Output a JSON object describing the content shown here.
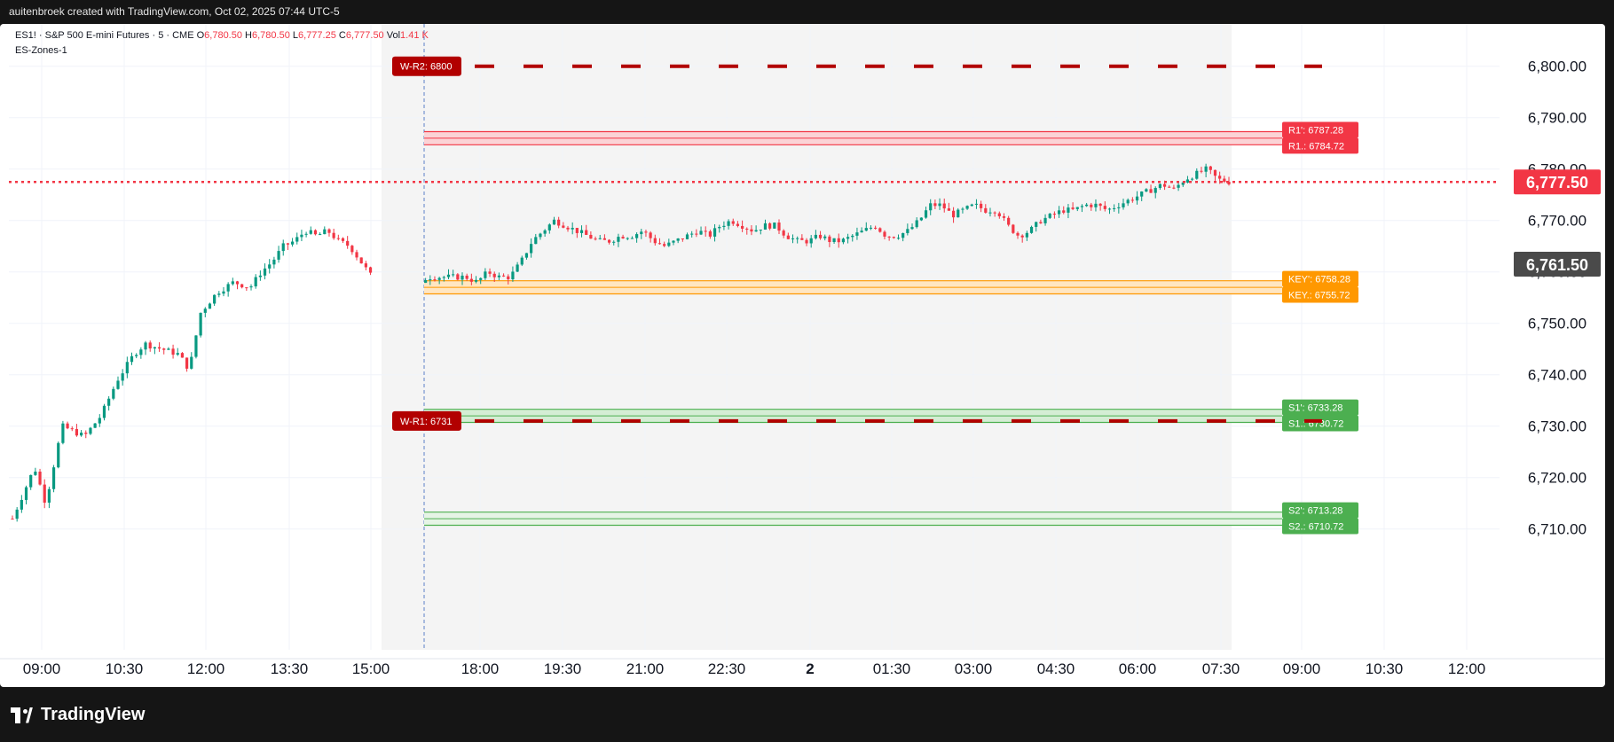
{
  "header": {
    "text": "auitenbroek created with TradingView.com, Oct 02, 2025 07:44 UTC-5"
  },
  "legend": {
    "symbol": "ES1! · S&P 500 E-mini Futures · 5 · CME",
    "o_label": "O",
    "o": "6,780.50",
    "h_label": "H",
    "h": "6,780.50",
    "l_label": "L",
    "l": "6,777.25",
    "c_label": "C",
    "c": "6,777.50",
    "vol_label": "Vol",
    "vol": "1.41 K",
    "indicator": "ES-Zones-1"
  },
  "brand": {
    "name": "TradingView"
  },
  "chart_data": {
    "type": "candlestick",
    "symbol": "ES1!",
    "timeframe": "5",
    "exchange": "CME",
    "y_ticks": [
      "6,800.00",
      "6,790.00",
      "6,780.00",
      "6,770.00",
      "6,760.00",
      "6,750.00",
      "6,740.00",
      "6,730.00",
      "6,720.00",
      "6,710.00"
    ],
    "y_tick_values": [
      6800,
      6790,
      6780,
      6770,
      6760,
      6750,
      6740,
      6730,
      6720,
      6710
    ],
    "ylim": [
      6706.5,
      6806.5
    ],
    "x_ticks": [
      "09:00",
      "10:30",
      "12:00",
      "13:30",
      "15:00",
      "18:00",
      "19:30",
      "21:00",
      "22:30",
      "2",
      "01:30",
      "03:00",
      "04:30",
      "06:00",
      "07:30",
      "09:00",
      "10:30",
      "12:00"
    ],
    "last_price": {
      "label": "6,777.50",
      "value": 6777.5
    },
    "crosshair_price": {
      "label": "6,761.50",
      "value": 6761.5
    },
    "zones": [
      {
        "name": "R1",
        "upper_label": "R1': 6787.28",
        "lower_label": "R1.: 6784.72",
        "upper": 6787.28,
        "lower": 6784.72,
        "color": "#f23645",
        "fill": "#fbd3d6"
      },
      {
        "name": "KEY",
        "upper_label": "KEY': 6758.28",
        "lower_label": "KEY.: 6755.72",
        "upper": 6758.28,
        "lower": 6755.72,
        "color": "#ff9800",
        "fill": "#ffe6c2"
      },
      {
        "name": "S1",
        "upper_label": "S1': 6733.28",
        "lower_label": "S1.: 6730.72",
        "upper": 6733.28,
        "lower": 6730.72,
        "color": "#4caf50",
        "fill": "#d4edd4"
      },
      {
        "name": "S2",
        "upper_label": "S2': 6713.28",
        "lower_label": "S2.: 6710.72",
        "upper": 6713.28,
        "lower": 6710.72,
        "color": "#4caf50",
        "fill": "#e6f4e6"
      }
    ],
    "weekly_levels": [
      {
        "label": "W-R2: 6800",
        "value": 6800,
        "color": "#b20000"
      },
      {
        "label": "W-R1: 6731",
        "value": 6731,
        "color": "#b20000"
      }
    ],
    "path": [
      [
        0,
        6712
      ],
      [
        4,
        6722
      ],
      [
        6,
        6715
      ],
      [
        9,
        6730
      ],
      [
        13,
        6728
      ],
      [
        16,
        6732
      ],
      [
        19,
        6739
      ],
      [
        22,
        6744
      ],
      [
        24,
        6746
      ],
      [
        27,
        6745
      ],
      [
        30,
        6744
      ],
      [
        32,
        6741
      ],
      [
        34,
        6752
      ],
      [
        37,
        6756
      ],
      [
        40,
        6758
      ],
      [
        43,
        6757
      ],
      [
        45,
        6760
      ],
      [
        47,
        6762
      ],
      [
        49,
        6765
      ],
      [
        51,
        6766
      ],
      [
        53,
        6768
      ],
      [
        55,
        6767
      ],
      [
        57,
        6768
      ],
      [
        59,
        6766
      ],
      [
        61,
        6765
      ],
      [
        63,
        6762
      ],
      [
        65,
        6759
      ],
      [
        67,
        6756
      ],
      [
        69,
        6756
      ],
      [
        71,
        6757
      ],
      [
        73,
        6757
      ],
      [
        75,
        6759
      ],
      [
        77,
        6759
      ],
      [
        80,
        6759
      ],
      [
        82,
        6759
      ],
      [
        84,
        6758
      ],
      [
        86,
        6760
      ],
      [
        88,
        6759
      ],
      [
        90,
        6759
      ],
      [
        92,
        6762
      ],
      [
        94,
        6766
      ],
      [
        96,
        6768
      ],
      [
        98,
        6770
      ],
      [
        100,
        6769
      ],
      [
        102,
        6768
      ],
      [
        104,
        6767
      ],
      [
        106,
        6766
      ],
      [
        108,
        6766
      ],
      [
        110,
        6767
      ],
      [
        112,
        6767
      ],
      [
        114,
        6768
      ],
      [
        116,
        6766
      ],
      [
        118,
        6765
      ],
      [
        120,
        6766
      ],
      [
        122,
        6767
      ],
      [
        124,
        6768
      ],
      [
        126,
        6767
      ],
      [
        128,
        6769
      ],
      [
        130,
        6770
      ],
      [
        132,
        6769
      ],
      [
        134,
        6768
      ],
      [
        136,
        6769
      ],
      [
        138,
        6769
      ],
      [
        140,
        6767
      ],
      [
        142,
        6766
      ],
      [
        144,
        6766
      ],
      [
        146,
        6767
      ],
      [
        148,
        6766
      ],
      [
        150,
        6766
      ],
      [
        152,
        6767
      ],
      [
        154,
        6768
      ],
      [
        156,
        6769
      ],
      [
        158,
        6767
      ],
      [
        160,
        6767
      ],
      [
        162,
        6768
      ],
      [
        164,
        6770
      ],
      [
        166,
        6773
      ],
      [
        168,
        6773
      ],
      [
        170,
        6771
      ],
      [
        172,
        6772
      ],
      [
        174,
        6773
      ],
      [
        176,
        6772
      ],
      [
        178,
        6772
      ],
      [
        180,
        6769
      ],
      [
        182,
        6767
      ],
      [
        184,
        6768
      ],
      [
        186,
        6770
      ],
      [
        188,
        6771
      ],
      [
        190,
        6772
      ],
      [
        192,
        6772
      ],
      [
        194,
        6773
      ],
      [
        196,
        6773
      ],
      [
        198,
        6772
      ],
      [
        200,
        6773
      ],
      [
        202,
        6774
      ],
      [
        204,
        6775
      ],
      [
        206,
        6776
      ],
      [
        208,
        6777
      ],
      [
        210,
        6776
      ],
      [
        212,
        6778
      ],
      [
        214,
        6779
      ],
      [
        216,
        6780
      ],
      [
        218,
        6778
      ],
      [
        220,
        6777.5
      ]
    ]
  }
}
